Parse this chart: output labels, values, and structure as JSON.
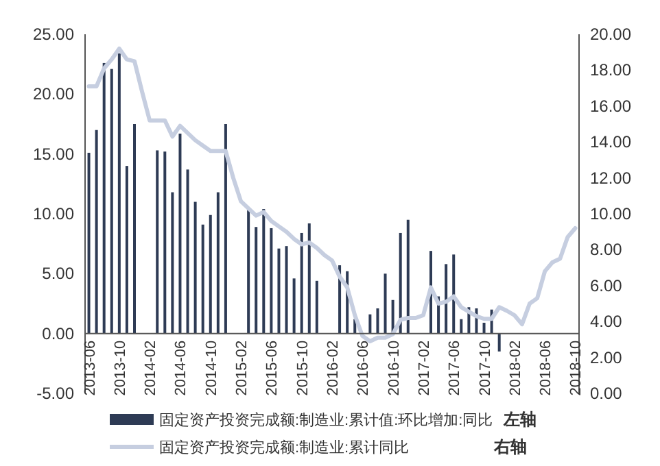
{
  "chart_data": {
    "type": "bar",
    "categories": [
      "2013-06",
      null,
      null,
      null,
      "2013-10",
      null,
      null,
      null,
      "2014-02",
      null,
      null,
      null,
      "2014-06",
      null,
      null,
      null,
      "2014-10",
      null,
      null,
      null,
      "2015-02",
      null,
      null,
      null,
      "2015-06",
      null,
      null,
      null,
      "2015-10",
      null,
      null,
      null,
      "2016-02",
      null,
      null,
      null,
      "2016-06",
      null,
      null,
      null,
      "2016-10",
      null,
      null,
      null,
      "2017-02",
      null,
      null,
      null,
      "2017-06",
      null,
      null,
      null,
      "2017-10",
      null,
      null,
      null,
      "2018-02",
      null,
      null,
      null,
      "2018-06",
      null,
      null,
      null,
      "2018-10"
    ],
    "series": [
      {
        "name": "固定资产投资完成额:制造业:累计值:环比增加:同比",
        "color": "#2e3b55",
        "values": [
          15.1,
          17.0,
          22.6,
          22.1,
          23.4,
          14.0,
          17.5,
          null,
          null,
          15.3,
          15.2,
          11.8,
          16.7,
          13.7,
          11.0,
          9.1,
          9.9,
          11.8,
          17.5,
          null,
          null,
          10.3,
          8.9,
          10.4,
          8.8,
          7.1,
          7.3,
          4.6,
          8.4,
          9.2,
          4.4,
          null,
          null,
          5.7,
          5.2,
          1.2,
          null,
          1.6,
          2.1,
          5.0,
          2.8,
          8.4,
          9.5,
          null,
          null,
          6.9,
          3.1,
          5.8,
          6.6,
          1.2,
          2.2,
          2.1,
          0.9,
          2.0,
          -1.5,
          null,
          null,
          null,
          null,
          null,
          null,
          null,
          null,
          null,
          null
        ]
      },
      {
        "name": "固定资产投资完成额:制造业:累计同比",
        "type": "line",
        "axis": "y2",
        "color": "#c6cee0",
        "values": [
          17.1,
          17.1,
          18.1,
          18.6,
          19.2,
          18.6,
          18.5,
          16.8,
          15.2,
          15.2,
          15.2,
          14.3,
          14.9,
          14.5,
          14.1,
          13.8,
          13.5,
          13.5,
          13.5,
          12.0,
          10.7,
          10.3,
          9.9,
          10.1,
          9.6,
          9.3,
          9.0,
          8.6,
          8.3,
          8.4,
          8.1,
          7.7,
          7.4,
          6.5,
          5.9,
          4.35,
          3.2,
          2.9,
          3.1,
          3.1,
          3.3,
          4.1,
          4.2,
          4.2,
          4.35,
          5.9,
          5.0,
          5.1,
          5.4,
          4.8,
          4.55,
          4.3,
          4.15,
          4.15,
          4.8,
          4.6,
          4.35,
          3.85,
          5.0,
          5.3,
          6.8,
          7.3,
          7.5,
          8.7,
          9.2
        ]
      }
    ],
    "ylim": [
      -5,
      25
    ],
    "yticks": [
      {
        "value": -5,
        "label": "-5.00"
      },
      {
        "value": 0,
        "label": "0.00"
      },
      {
        "value": 5,
        "label": "5.00"
      },
      {
        "value": 10,
        "label": "10.00"
      },
      {
        "value": 15,
        "label": "15.00"
      },
      {
        "value": 20,
        "label": "20.00"
      },
      {
        "value": 25,
        "label": "25.00"
      }
    ],
    "y2lim": [
      0,
      20
    ],
    "y2ticks": [
      {
        "value": 0,
        "label": "0.00"
      },
      {
        "value": 2,
        "label": "2.00"
      },
      {
        "value": 4,
        "label": "4.00"
      },
      {
        "value": 6,
        "label": "6.00"
      },
      {
        "value": 8,
        "label": "8.00"
      },
      {
        "value": 10,
        "label": "10.00"
      },
      {
        "value": 12,
        "label": "12.00"
      },
      {
        "value": 14,
        "label": "14.00"
      },
      {
        "value": 16,
        "label": "16.00"
      },
      {
        "value": 18,
        "label": "18.00"
      },
      {
        "value": 20,
        "label": "20.00"
      }
    ],
    "legend": "bottom",
    "annotations": [
      "左轴",
      "右轴"
    ]
  }
}
